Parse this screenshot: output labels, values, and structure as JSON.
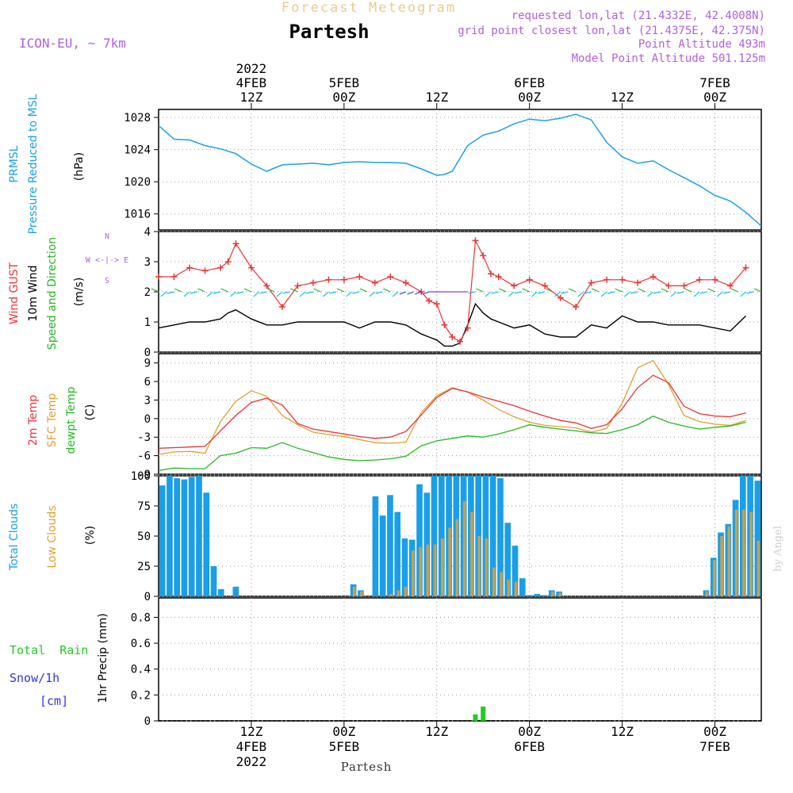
{
  "header": {
    "product": "Forecast Meteogram",
    "location": "Partesh",
    "model": "ICON-EU, ~ 7km",
    "requested": "requested lon,lat (21.4332E, 42.4008N)",
    "grid_point": "grid point closest lon,lat (21.4375E, 42.375N)",
    "point_altitude": "Point Altitude 493m",
    "model_altitude": "Model Point Altitude 501.125m"
  },
  "footer": {
    "location": "Partesh",
    "watermark": "by Angel"
  },
  "time_axis": {
    "ticks": [
      {
        "x": 12,
        "top": [
          "2022",
          "4FEB",
          "12Z"
        ],
        "bottom": [
          "12Z",
          "4FEB",
          "2022"
        ]
      },
      {
        "x": 24,
        "top": [
          "5FEB",
          "00Z"
        ],
        "bottom": [
          "00Z",
          "5FEB"
        ]
      },
      {
        "x": 36,
        "top": [
          "12Z"
        ],
        "bottom": [
          "12Z"
        ]
      },
      {
        "x": 48,
        "top": [
          "6FEB",
          "00Z"
        ],
        "bottom": [
          "00Z",
          "6FEB"
        ]
      },
      {
        "x": 60,
        "top": [
          "12Z"
        ],
        "bottom": [
          "12Z"
        ]
      },
      {
        "x": 72,
        "top": [
          "7FEB",
          "00Z"
        ],
        "bottom": [
          "00Z",
          "7FEB"
        ]
      }
    ]
  },
  "colors": {
    "pressure": "#1aa0e8",
    "gust": "#ee3333",
    "wind": "#000000",
    "dir": "#22bb22",
    "temp2m": "#ee3333",
    "sfc": "#e0a030",
    "dewpt": "#22bb22",
    "total_clouds": "#1a9ee8",
    "low_clouds": "#c8a050",
    "rain": "#22cc22",
    "snow": "#3333ee",
    "purple": "#b060e0",
    "header_orange": "#f0c890"
  },
  "chart_data": [
    {
      "type": "line",
      "name": "pressure",
      "ylabel": [
        "PRMSL",
        "Pressure Reduced to MSL",
        "(hPa)"
      ],
      "ylim": [
        1014,
        1029
      ],
      "yticks": [
        1016,
        1020,
        1024,
        1028
      ],
      "x": [
        0,
        2,
        4,
        6,
        8,
        10,
        12,
        14,
        16,
        18,
        20,
        22,
        24,
        26,
        28,
        30,
        32,
        34,
        36,
        37,
        38,
        40,
        42,
        44,
        46,
        48,
        50,
        52,
        54,
        56,
        58,
        60,
        62,
        64,
        66,
        68,
        70,
        72,
        74,
        76,
        78
      ],
      "values": [
        1027,
        1025.3,
        1025.2,
        1024.5,
        1024.1,
        1023.5,
        1022.2,
        1021.3,
        1022.1,
        1022.2,
        1022.3,
        1022.1,
        1022.4,
        1022.5,
        1022.4,
        1022.4,
        1022.3,
        1021.6,
        1020.8,
        1020.9,
        1021.3,
        1024.5,
        1025.8,
        1026.3,
        1027.2,
        1027.8,
        1027.6,
        1027.9,
        1028.4,
        1027.7,
        1024.9,
        1023.1,
        1022.3,
        1022.6,
        1021.5,
        1020.5,
        1019.5,
        1018.3,
        1017.6,
        1016.2,
        1014.5
      ]
    },
    {
      "type": "line",
      "name": "wind",
      "ylabel": [
        "Wind GUST",
        "10m Wind",
        "Speed and Direction",
        "(m/s)"
      ],
      "ylim": [
        0,
        4
      ],
      "yticks": [
        0,
        1,
        2,
        3,
        4
      ],
      "compass": [
        "N",
        "W <-|-> E",
        "S"
      ],
      "x": [
        0,
        2,
        4,
        6,
        8,
        9,
        10,
        12,
        14,
        16,
        18,
        20,
        22,
        24,
        26,
        28,
        30,
        32,
        34,
        35,
        36,
        37,
        38,
        39,
        40,
        41,
        42,
        43,
        44,
        46,
        48,
        50,
        52,
        54,
        56,
        58,
        60,
        62,
        64,
        66,
        68,
        70,
        72,
        74,
        76
      ],
      "series": [
        {
          "name": "Wind GUST",
          "values": [
            2.5,
            2.5,
            2.8,
            2.7,
            2.8,
            3.0,
            3.6,
            2.8,
            2.2,
            1.5,
            2.2,
            2.3,
            2.4,
            2.4,
            2.5,
            2.3,
            2.5,
            2.3,
            2.0,
            1.7,
            1.6,
            0.9,
            0.5,
            0.35,
            0.8,
            3.7,
            3.2,
            2.6,
            2.5,
            2.2,
            2.4,
            2.2,
            1.8,
            1.5,
            2.3,
            2.4,
            2.4,
            2.3,
            2.5,
            2.2,
            2.2,
            2.4,
            2.4,
            2.2,
            2.8
          ]
        },
        {
          "name": "10m Wind",
          "values": [
            0.8,
            0.9,
            1.0,
            1.0,
            1.1,
            1.3,
            1.4,
            1.1,
            0.9,
            0.9,
            1.0,
            1.0,
            1.0,
            1.0,
            0.8,
            1.0,
            1.0,
            0.9,
            0.6,
            0.5,
            0.4,
            0.2,
            0.2,
            0.3,
            0.9,
            1.6,
            1.3,
            1.1,
            1.0,
            0.8,
            0.9,
            0.6,
            0.5,
            0.5,
            0.9,
            0.8,
            1.2,
            1.0,
            1.0,
            0.9,
            0.9,
            0.9,
            0.8,
            0.7,
            1.2
          ]
        }
      ]
    },
    {
      "type": "line",
      "name": "temperature",
      "ylabel": [
        "2m Temp",
        "SFC Temp",
        "dewpt Temp",
        "(C)"
      ],
      "ylim": [
        -9,
        10.5
      ],
      "yticks": [
        -9,
        -6,
        -3,
        0,
        3,
        6,
        9
      ],
      "x": [
        0,
        2,
        4,
        6,
        8,
        10,
        12,
        14,
        16,
        18,
        20,
        22,
        24,
        26,
        28,
        30,
        32,
        34,
        36,
        38,
        40,
        42,
        44,
        46,
        48,
        50,
        52,
        54,
        56,
        58,
        60,
        62,
        64,
        66,
        68,
        70,
        72,
        74,
        76
      ],
      "series": [
        {
          "name": "2m Temp",
          "values": [
            -4.8,
            -4.7,
            -4.6,
            -4.5,
            -2.0,
            0.5,
            2.6,
            3.3,
            2.2,
            -0.8,
            -1.7,
            -2.1,
            -2.5,
            -2.9,
            -3.2,
            -3.0,
            -2.1,
            0.6,
            3.4,
            4.9,
            4.3,
            3.5,
            2.8,
            2.1,
            1.2,
            0.4,
            -0.3,
            -0.7,
            -1.6,
            -1.0,
            1.6,
            5.0,
            7.0,
            5.8,
            2.0,
            0.8,
            0.4,
            0.3,
            0.9
          ]
        },
        {
          "name": "SFC Temp",
          "values": [
            -5.8,
            -5.4,
            -5.3,
            -5.6,
            -0.5,
            2.8,
            4.5,
            3.6,
            0.5,
            -1.0,
            -2.2,
            -2.6,
            -2.9,
            -3.4,
            -3.9,
            -4.0,
            -3.8,
            1.0,
            3.7,
            5.0,
            4.3,
            3.0,
            1.5,
            0.3,
            -0.6,
            -1.1,
            -1.3,
            -1.5,
            -2.2,
            -1.6,
            2.5,
            8.2,
            9.4,
            5.5,
            0.5,
            -0.5,
            -0.9,
            -1.1,
            -0.3
          ]
        },
        {
          "name": "dewpt Temp",
          "values": [
            -8.4,
            -8.0,
            -8.1,
            -8.1,
            -6.0,
            -5.6,
            -4.7,
            -4.8,
            -3.9,
            -4.8,
            -5.5,
            -6.2,
            -6.6,
            -6.8,
            -6.7,
            -6.5,
            -6.1,
            -4.4,
            -3.6,
            -3.2,
            -2.8,
            -3.0,
            -2.5,
            -1.8,
            -1.0,
            -1.4,
            -1.7,
            -2.0,
            -2.3,
            -2.4,
            -1.8,
            -1.0,
            0.4,
            -0.6,
            -1.2,
            -1.7,
            -1.4,
            -1.2,
            -0.6
          ]
        }
      ]
    },
    {
      "type": "bar",
      "name": "clouds",
      "ylabel": [
        "Total Clouds",
        "Low Clouds",
        "(%)"
      ],
      "ylim": [
        0,
        100
      ],
      "yticks": [
        0,
        25,
        50,
        75,
        100
      ],
      "x_start": 0,
      "series": [
        {
          "name": "Total Clouds",
          "values": [
            92,
            100,
            98,
            97,
            99,
            100,
            86,
            25,
            6,
            0,
            8,
            0,
            0,
            0,
            0,
            0,
            0,
            0,
            0,
            0,
            0,
            0,
            0,
            0,
            0,
            0,
            10,
            5,
            0,
            83,
            67,
            84,
            70,
            48,
            47,
            93,
            86,
            100,
            100,
            100,
            100,
            100,
            100,
            100,
            100,
            100,
            98,
            61,
            42,
            15,
            1,
            2,
            1,
            5,
            4,
            0,
            0,
            0,
            0,
            0,
            0,
            0,
            0,
            0,
            0,
            0,
            0,
            0,
            0,
            0,
            0,
            0,
            0,
            0,
            5,
            32,
            53,
            60,
            80,
            100,
            100,
            96
          ]
        },
        {
          "name": "Low Clouds",
          "values": [
            0,
            0,
            0,
            0,
            0,
            0,
            0,
            0,
            0,
            0,
            0,
            0,
            0,
            0,
            0,
            0,
            0,
            0,
            0,
            0,
            0,
            0,
            0,
            0,
            0,
            0,
            8,
            4,
            0,
            0,
            0,
            2,
            5,
            8,
            38,
            41,
            43,
            43,
            48,
            57,
            64,
            79,
            70,
            50,
            48,
            24,
            20,
            14,
            12,
            0,
            0,
            0,
            0,
            4,
            3,
            0,
            0,
            0,
            0,
            0,
            0,
            0,
            0,
            0,
            0,
            0,
            0,
            0,
            0,
            0,
            0,
            0,
            0,
            0,
            4,
            30,
            50,
            58,
            72,
            72,
            70,
            46
          ]
        }
      ]
    },
    {
      "type": "bar",
      "name": "precip",
      "ylabel": [
        "1hr Precip (mm)"
      ],
      "legend": [
        "Total  Rain",
        "Snow/1h",
        "[cm]"
      ],
      "ylim": [
        0,
        0.95
      ],
      "yticks": [
        0,
        0.2,
        0.4,
        0.6,
        0.8
      ],
      "yticklabels": [
        "0",
        "0.2",
        "0.4",
        "0.6",
        "0.8"
      ],
      "series": [
        {
          "name": "Total Rain",
          "x": [
            41,
            42
          ],
          "values": [
            0.05,
            0.11
          ]
        }
      ]
    }
  ]
}
